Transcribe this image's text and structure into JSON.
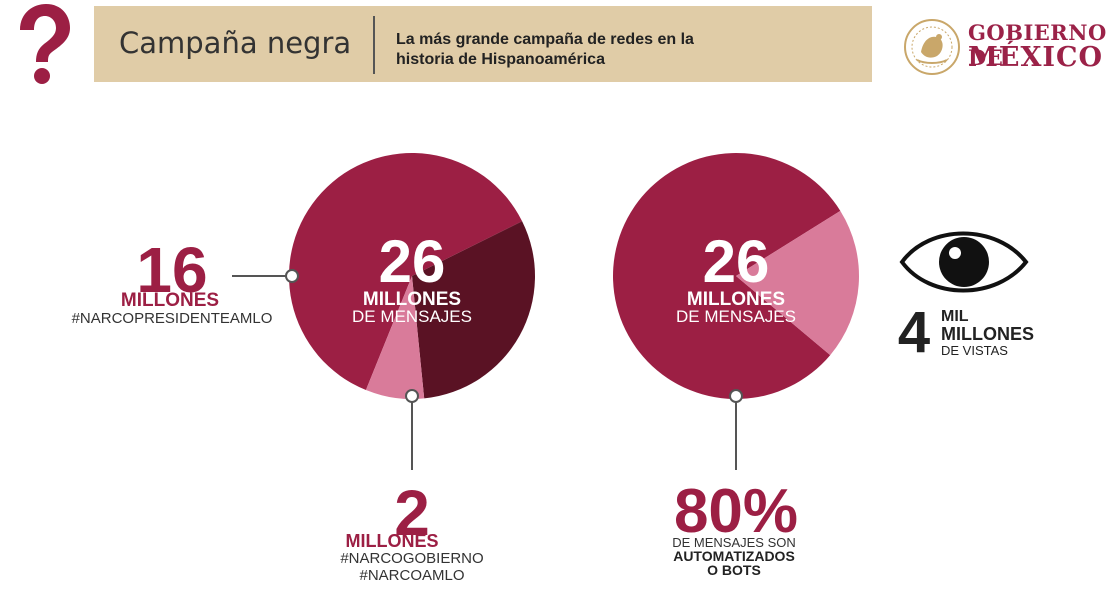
{
  "header": {
    "title": "Campaña negra",
    "subtitle_line1": "La más grande campaña de redes en la",
    "subtitle_line2": "historia de Hispanoamérica",
    "logo_line1": "GOBIERNO DE",
    "logo_line2": "MÉXICO",
    "logo_seal_text": "ESTADOS UNIDOS MEXICANOS"
  },
  "icons": {
    "question": "question-mark-bird-icon",
    "seal": "national-seal-icon",
    "eye": "eye-icon"
  },
  "colors": {
    "wine": "#9c1f44",
    "dark": "#5a1224",
    "pink": "#d97b9a",
    "band": "#e0cca7"
  },
  "chart_data": [
    {
      "type": "pie",
      "total_label": {
        "number": "26",
        "line1": "MILLONES",
        "line2": "DE MENSAJES"
      },
      "slices": [
        {
          "label": "#NARCOPRESIDENTEAMLO",
          "value": 16,
          "unit": "MILLONES",
          "color": "#9c1f44"
        },
        {
          "label": "",
          "value": 8,
          "unit": "MILLONES",
          "color": "#5a1224"
        },
        {
          "label": "#NARCOGOBIERNO #NARCOAMLO",
          "value": 2,
          "unit": "MILLONES",
          "color": "#d97b9a"
        }
      ],
      "callouts": [
        {
          "number": "16",
          "unit": "MILLONES",
          "tag": "#NARCOPRESIDENTEAMLO"
        },
        {
          "number": "2",
          "unit": "MILLONES",
          "tag_line1": "#NARCOGOBIERNO",
          "tag_line2": "#NARCOAMLO"
        }
      ]
    },
    {
      "type": "pie",
      "total_label": {
        "number": "26",
        "line1": "MILLONES",
        "line2": "DE MENSAJES"
      },
      "slices": [
        {
          "label": "AUTOMATIZADOS O BOTS",
          "value": 80,
          "unit": "%",
          "color": "#9c1f44"
        },
        {
          "label": "",
          "value": 20,
          "unit": "%",
          "color": "#d97b9a"
        }
      ],
      "callouts": [
        {
          "number": "80%",
          "line1": "DE MENSAJES SON",
          "line2": "AUTOMATIZADOS",
          "line3": "O BOTS"
        }
      ]
    }
  ],
  "views": {
    "number": "4",
    "line1": "MIL",
    "line2": "MILLONES",
    "line3": "DE VISTAS"
  }
}
